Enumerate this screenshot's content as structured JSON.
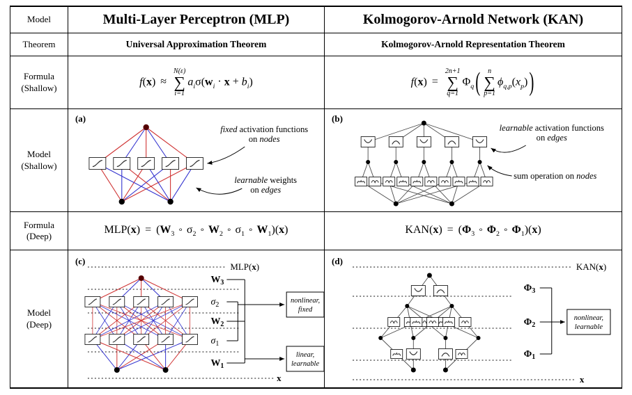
{
  "table": {
    "col_labels": {
      "model": "Model",
      "theorem": "Theorem",
      "formula_shallow": [
        "Formula",
        "(Shallow)"
      ],
      "model_shallow": [
        "Model",
        "(Shallow)"
      ],
      "formula_deep": [
        "Formula",
        "(Deep)"
      ],
      "model_deep": [
        "Model",
        "(Deep)"
      ]
    },
    "headers": {
      "mlp": "Multi-Layer Perceptron (MLP)",
      "kan": "Kolmogorov-Arnold Network (KAN)"
    },
    "theorems": {
      "mlp": "Universal Approximation Theorem",
      "kan": "Kolmogorov-Arnold Representation Theorem"
    }
  },
  "formulas": {
    "mlp_shallow": {
      "f": "f",
      "lp": "(",
      "x": "x",
      "rp": ")",
      "rel": "≈",
      "sum_top": "N(ε)",
      "sum_op": "∑",
      "sum_bot": "i=1",
      "a": "a",
      "a_sub": "i",
      "sigma": "σ",
      "lp2": "(",
      "w": "w",
      "w_sub": "i",
      "dot": "·",
      "x2": "x",
      "plus": "+",
      "b": "b",
      "b_sub": "i",
      "rp2": ")"
    },
    "kan_shallow": {
      "f": "f",
      "lp": "(",
      "x": "x",
      "rp": ")",
      "rel": "=",
      "sum1_top": "2n+1",
      "sum1_op": "∑",
      "sum1_bot": "q=1",
      "Phi": "Φ",
      "Phi_sub": "q",
      "bigl": "(",
      "sum2_top": "n",
      "sum2_op": "∑",
      "sum2_bot": "p=1",
      "phi": "ϕ",
      "phi_sub": "q,p",
      "lp2": "(",
      "xp": "x",
      "xp_sub": "p",
      "rp2": ")",
      "bigr": ")"
    },
    "mlp_deep": {
      "name": "MLP",
      "lp": "(",
      "x": "x",
      "rp": ")",
      "eq": "=",
      "lp2": "(",
      "t1": "W",
      "t1s": "3",
      "c1": "∘",
      "t2": "σ",
      "t2s": "2",
      "c2": "∘",
      "t3": "W",
      "t3s": "2",
      "c3": "∘",
      "t4": "σ",
      "t4s": "1",
      "c4": "∘",
      "t5": "W",
      "t5s": "1",
      "rp2": ")",
      "lp3": "(",
      "x2": "x",
      "rp3": ")"
    },
    "kan_deep": {
      "name": "KAN",
      "lp": "(",
      "x": "x",
      "rp": ")",
      "eq": "=",
      "lp2": "(",
      "t1": "Φ",
      "t1s": "3",
      "c1": "∘",
      "t2": "Φ",
      "t2s": "2",
      "c2": "∘",
      "t3": "Φ",
      "t3s": "1",
      "rp2": ")",
      "lp3": "(",
      "x2": "x",
      "rp3": ")"
    }
  },
  "diagrams": {
    "a": {
      "tag": "(a)",
      "ann1_em": "fixed",
      "ann1_rest": " activation functions",
      "ann1_l2pre": "on ",
      "ann1_l2em": "nodes",
      "ann2_em": "learnable",
      "ann2_rest": " weights",
      "ann2_l2pre": "on ",
      "ann2_l2em": "edges"
    },
    "b": {
      "tag": "(b)",
      "ann1_em": "learnable",
      "ann1_rest": " activation functions",
      "ann1_l2pre": "on ",
      "ann1_l2em": "edges",
      "ann2_pre": "sum operation on ",
      "ann2_em": "nodes"
    },
    "c": {
      "tag": "(c)",
      "top_pre": "MLP(",
      "top_x": "x",
      "top_post": ")",
      "x_label": "x",
      "layers": [
        {
          "main": "W",
          "sub": "3"
        },
        {
          "main": "σ",
          "sub": "2"
        },
        {
          "main": "W",
          "sub": "2"
        },
        {
          "main": "σ",
          "sub": "1"
        },
        {
          "main": "W",
          "sub": "1"
        }
      ],
      "box_top": [
        "nonlinear,",
        "fixed"
      ],
      "box_bottom": [
        "linear,",
        "learnable"
      ]
    },
    "d": {
      "tag": "(d)",
      "top_pre": "KAN(",
      "top_x": "x",
      "top_post": ")",
      "x_label": "x",
      "layers": [
        {
          "main": "Φ",
          "sub": "3"
        },
        {
          "main": "Φ",
          "sub": "2"
        },
        {
          "main": "Φ",
          "sub": "1"
        }
      ],
      "box": [
        "nonlinear,",
        "learnable"
      ]
    }
  },
  "colors": {
    "edge_red": "#cf3333",
    "edge_blue": "#3333cf",
    "edge_black": "#4a4a4a",
    "node_dark_red": "#550000",
    "node_black": "#000000"
  }
}
